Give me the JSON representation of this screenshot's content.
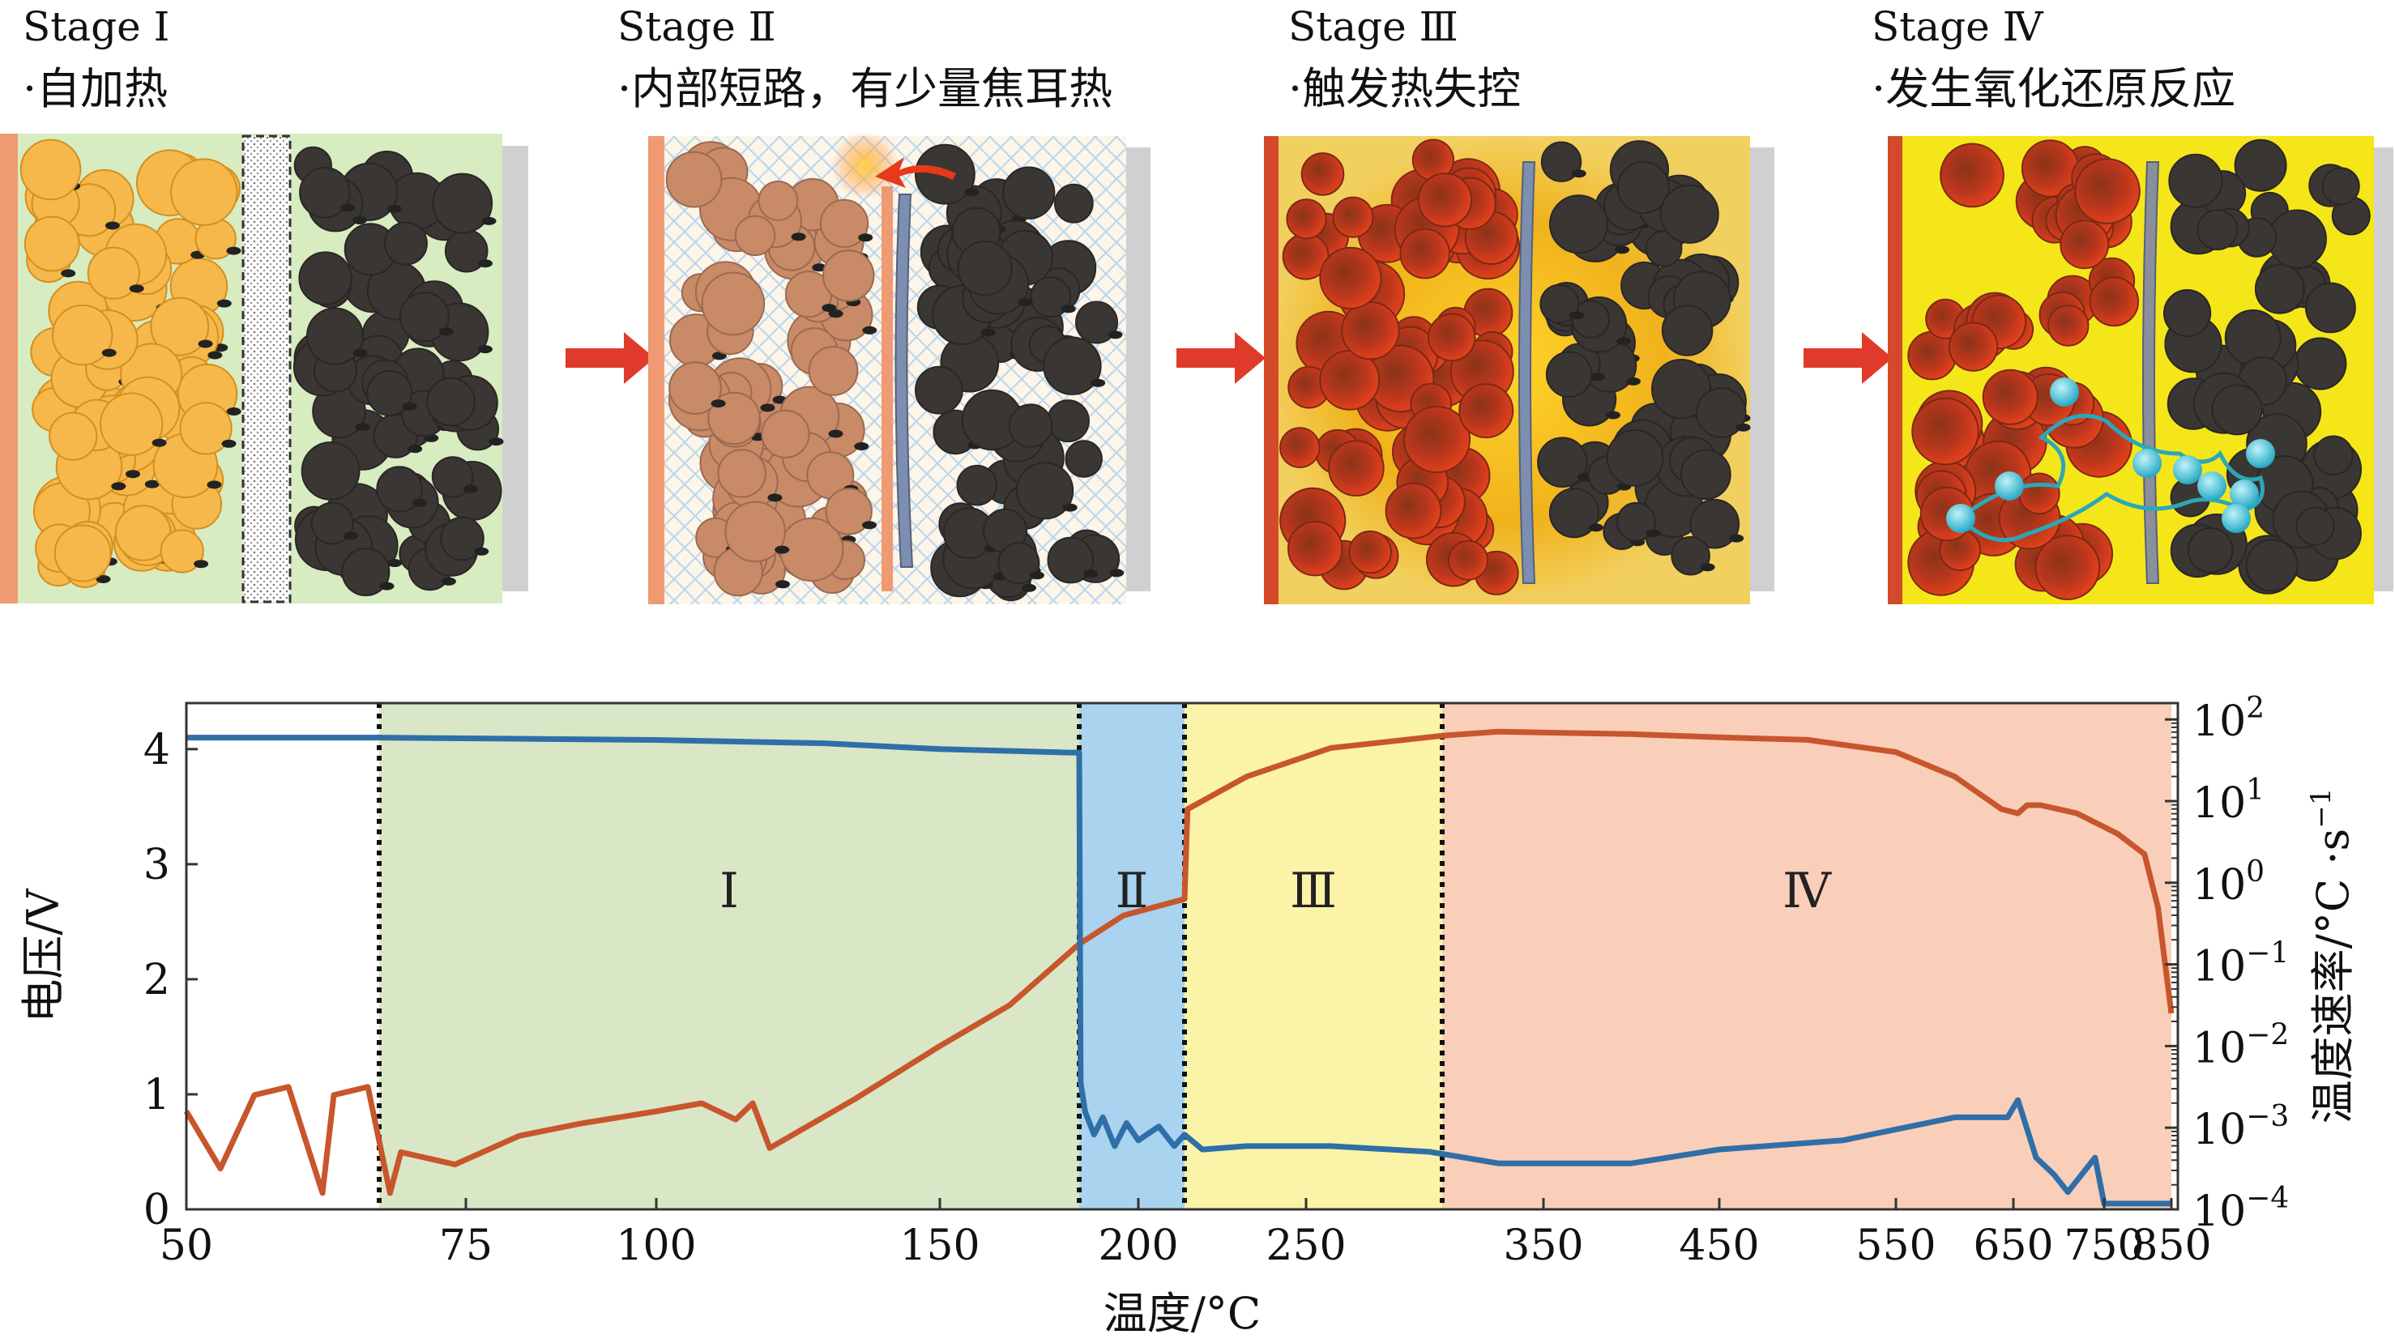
{
  "stages": [
    {
      "title": "Stage Ⅰ",
      "subtitle": "·自加热"
    },
    {
      "title": "Stage Ⅱ",
      "subtitle": "·内部短路，有少量焦耳热"
    },
    {
      "title": "Stage Ⅲ",
      "subtitle": "·触发热失控"
    },
    {
      "title": "Stage Ⅳ",
      "subtitle": "·发生氧化还原反应"
    }
  ],
  "colors": {
    "voltage": "#2f6fa8",
    "rate": "#c8562c",
    "region_I": "#d9e7c6",
    "region_II": "#a9d3ee",
    "region_III": "#fbf4a8",
    "region_IV": "#f9cfba",
    "arrow": "#e03a2a",
    "cathode": "#f6b84a",
    "anode": "#3a3633"
  },
  "chart_data": {
    "type": "line",
    "xlabel": "温度/°C",
    "ylabel_left": "电压/V",
    "ylabel_right": "温度速率/°C ·s",
    "ylabel_right_sup": "−1",
    "x_ticks": [
      "50",
      "75",
      "100",
      "150",
      "200",
      "250",
      "350",
      "450",
      "550",
      "650",
      "750",
      "850"
    ],
    "y_left_ticks": [
      "0",
      "1",
      "2",
      "3",
      "4"
    ],
    "y_left_range": [
      0,
      4.4
    ],
    "y_right_ticks": [
      {
        "base": "10",
        "exp": "−4"
      },
      {
        "base": "10",
        "exp": "−3"
      },
      {
        "base": "10",
        "exp": "−2"
      },
      {
        "base": "10",
        "exp": "−1"
      },
      {
        "base": "10",
        "exp": "0"
      },
      {
        "base": "10",
        "exp": "1"
      },
      {
        "base": "10",
        "exp": "2"
      }
    ],
    "y_right_log_range": [
      -4,
      2.2
    ],
    "regions": [
      {
        "label": "Ⅰ",
        "start": 67,
        "end": 180,
        "color": "#d9e7c6"
      },
      {
        "label": "Ⅱ",
        "start": 180,
        "end": 209,
        "color": "#a9d3ee"
      },
      {
        "label": "Ⅲ",
        "start": 209,
        "end": 305,
        "color": "#fbf4a8"
      },
      {
        "label": "Ⅳ",
        "start": 305,
        "end": 850,
        "color": "#f9cfba"
      }
    ],
    "series": [
      {
        "name": "电压",
        "axis": "left",
        "points": [
          [
            50,
            4.1
          ],
          [
            67,
            4.1
          ],
          [
            100,
            4.08
          ],
          [
            130,
            4.05
          ],
          [
            150,
            4.0
          ],
          [
            178,
            3.97
          ],
          [
            180,
            3.97
          ],
          [
            180.5,
            1.1
          ],
          [
            182,
            0.85
          ],
          [
            185,
            0.65
          ],
          [
            188,
            0.8
          ],
          [
            192,
            0.55
          ],
          [
            196,
            0.75
          ],
          [
            200,
            0.6
          ],
          [
            204,
            0.72
          ],
          [
            207,
            0.55
          ],
          [
            209,
            0.65
          ],
          [
            215,
            0.52
          ],
          [
            230,
            0.55
          ],
          [
            260,
            0.55
          ],
          [
            300,
            0.5
          ],
          [
            330,
            0.4
          ],
          [
            400,
            0.4
          ],
          [
            450,
            0.52
          ],
          [
            520,
            0.6
          ],
          [
            600,
            0.8
          ],
          [
            645,
            0.8
          ],
          [
            655,
            0.95
          ],
          [
            675,
            0.45
          ],
          [
            695,
            0.3
          ],
          [
            710,
            0.15
          ],
          [
            725,
            0.3
          ],
          [
            740,
            0.45
          ],
          [
            750,
            0.05
          ],
          [
            850,
            0.05
          ]
        ]
      },
      {
        "name": "温度速率",
        "axis": "right_log",
        "points": [
          [
            50,
            -2.8
          ],
          [
            53,
            -3.5
          ],
          [
            56,
            -2.6
          ],
          [
            59,
            -2.5
          ],
          [
            62,
            -3.8
          ],
          [
            63,
            -2.6
          ],
          [
            66,
            -2.5
          ],
          [
            68,
            -3.8
          ],
          [
            69,
            -3.3
          ],
          [
            74,
            -3.45
          ],
          [
            82,
            -3.1
          ],
          [
            90,
            -2.95
          ],
          [
            100,
            -2.8
          ],
          [
            108,
            -2.7
          ],
          [
            114,
            -2.9
          ],
          [
            117,
            -2.7
          ],
          [
            120,
            -3.25
          ],
          [
            125,
            -3.05
          ],
          [
            135,
            -2.65
          ],
          [
            150,
            -2.0
          ],
          [
            165,
            -1.5
          ],
          [
            180,
            -0.75
          ],
          [
            195,
            -0.4
          ],
          [
            209,
            -0.2
          ],
          [
            210,
            0.9
          ],
          [
            230,
            1.3
          ],
          [
            260,
            1.65
          ],
          [
            305,
            1.8
          ],
          [
            330,
            1.85
          ],
          [
            400,
            1.82
          ],
          [
            450,
            1.78
          ],
          [
            500,
            1.75
          ],
          [
            550,
            1.6
          ],
          [
            600,
            1.3
          ],
          [
            640,
            0.9
          ],
          [
            655,
            0.85
          ],
          [
            665,
            0.95
          ],
          [
            680,
            0.95
          ],
          [
            720,
            0.85
          ],
          [
            770,
            0.6
          ],
          [
            810,
            0.35
          ],
          [
            830,
            -0.3
          ],
          [
            850,
            -1.6
          ]
        ]
      }
    ]
  }
}
